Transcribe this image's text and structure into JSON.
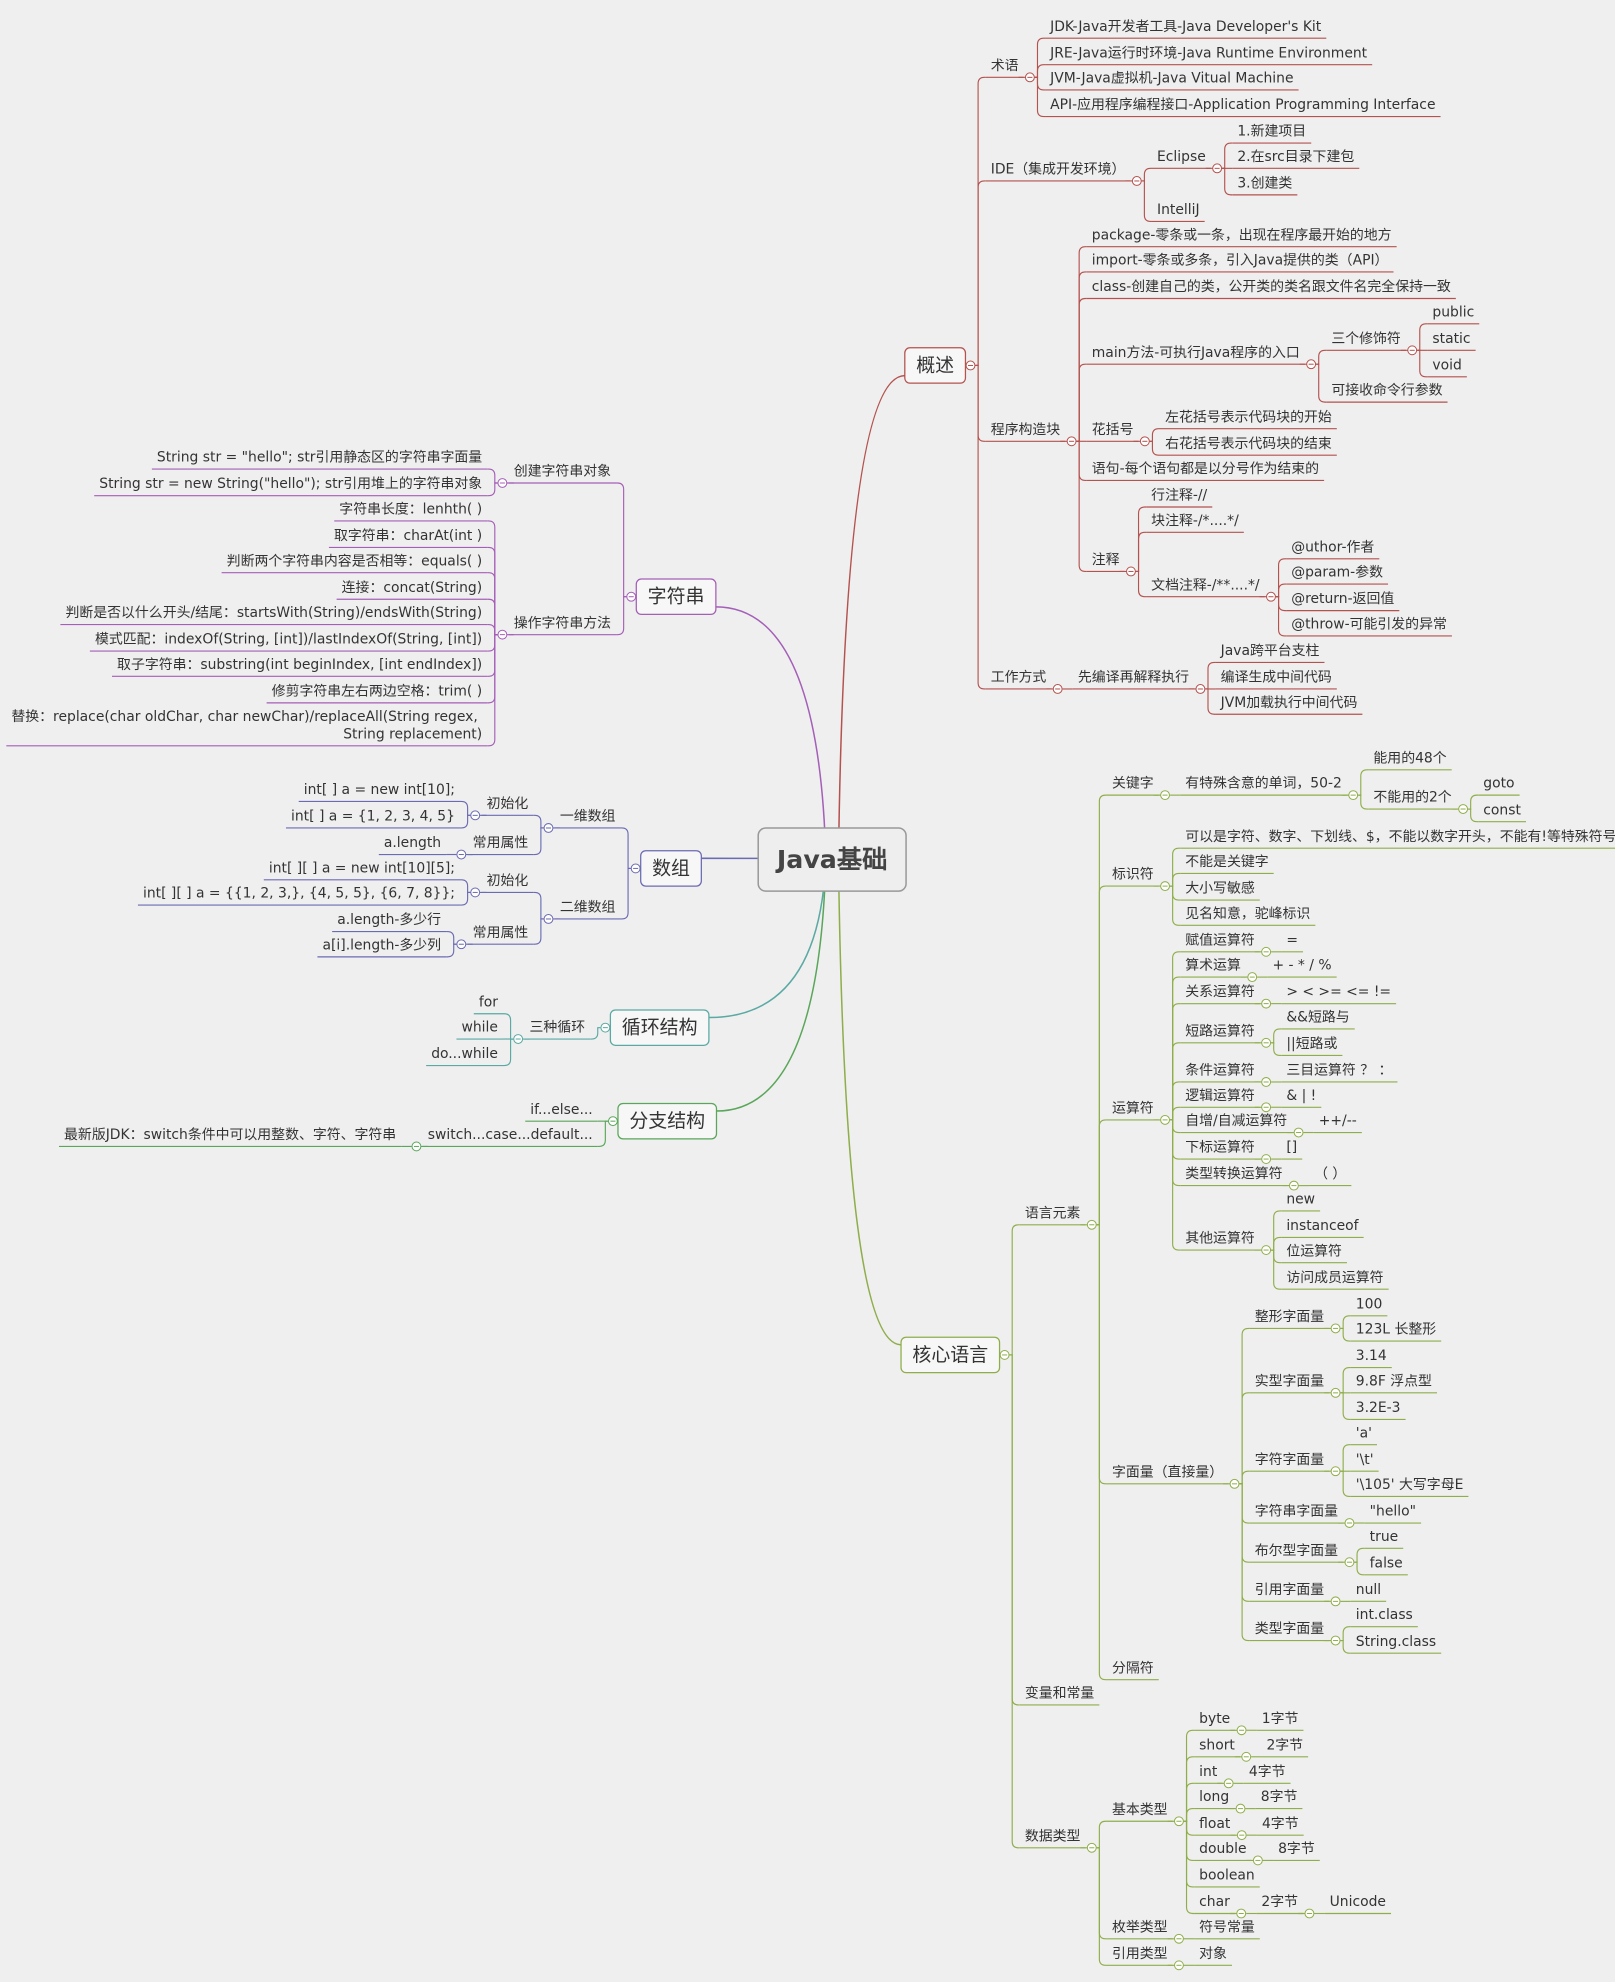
{
  "title": "Java基础",
  "branches": [
    {
      "label": "概述",
      "color": "#b4524e",
      "children": [
        {
          "label": "术语",
          "children": [
            {
              "label": "JDK-Java开发者工具-Java Developer's Kit"
            },
            {
              "label": "JRE-Java运行时环境-Java Runtime Environment"
            },
            {
              "label": "JVM-Java虚拟机-Java Vitual Machine"
            },
            {
              "label": "API-应用程序编程接口-Application Programming Interface"
            }
          ]
        },
        {
          "label": "IDE（集成开发环境）",
          "children": [
            {
              "label": "Eclipse",
              "children": [
                {
                  "label": "1.新建项目"
                },
                {
                  "label": "2.在src目录下建包"
                },
                {
                  "label": "3.创建类"
                }
              ]
            },
            {
              "label": "IntelliJ"
            }
          ]
        },
        {
          "label": "程序构造块",
          "children": [
            {
              "label": "package-零条或一条，出现在程序最开始的地方"
            },
            {
              "label": "import-零条或多条，引入Java提供的类（API）"
            },
            {
              "label": "class-创建自己的类，公开类的类名跟文件名完全保持一致"
            },
            {
              "label": "main方法-可执行Java程序的入口",
              "children": [
                {
                  "label": "三个修饰符",
                  "children": [
                    {
                      "label": "public"
                    },
                    {
                      "label": "static"
                    },
                    {
                      "label": "void"
                    }
                  ]
                },
                {
                  "label": "可接收命令行参数"
                }
              ]
            },
            {
              "label": "花括号",
              "children": [
                {
                  "label": "左花括号表示代码块的开始"
                },
                {
                  "label": "右花括号表示代码块的结束"
                }
              ]
            },
            {
              "label": "语句-每个语句都是以分号作为结束的"
            },
            {
              "label": "注释",
              "children": [
                {
                  "label": "行注释-//"
                },
                {
                  "label": "块注释-/*....*/"
                },
                {
                  "label": "文档注释-/**....*/",
                  "children": [
                    {
                      "label": "@uthor-作者"
                    },
                    {
                      "label": "@param-参数"
                    },
                    {
                      "label": "@return-返回值"
                    },
                    {
                      "label": "@throw-可能引发的异常"
                    }
                  ]
                }
              ]
            }
          ]
        },
        {
          "label": "工作方式",
          "children": [
            {
              "label": "先编译再解释执行",
              "children": [
                {
                  "label": "Java跨平台支柱"
                },
                {
                  "label": "编译生成中间代码"
                },
                {
                  "label": "JVM加载执行中间代码"
                }
              ]
            }
          ]
        }
      ]
    },
    {
      "label": "字符串",
      "color": "#a45fb7",
      "children": [
        {
          "label": "创建字符串对象",
          "children": [
            {
              "label": "String str = \"hello\"; str引用静态区的字符串字面量"
            },
            {
              "label": "String str = new String(\"hello\"); str引用堆上的字符串对象"
            }
          ]
        },
        {
          "label": "操作字符串方法",
          "children": [
            {
              "label": "字符串长度：lenhth( )"
            },
            {
              "label": "取字符串：charAt(int )"
            },
            {
              "label": "判断两个字符串内容是否相等：equals( )"
            },
            {
              "label": "连接：concat(String)"
            },
            {
              "label": "判断是否以什么开头/结尾：startsWith(String)/endsWith(String)"
            },
            {
              "label": "模式匹配：indexOf(String, [int])/lastIndexOf(String, [int])"
            },
            {
              "label": "取子字符串：substring(int beginIndex, [int endIndex])"
            },
            {
              "label": "修剪字符串左右两边空格：trim( )"
            },
            {
              "label": "替换：replace(char oldChar, char newChar)/replaceAll(String regex, String replacement)"
            }
          ]
        }
      ]
    },
    {
      "label": "数组",
      "color": "#6b6bb3",
      "children": [
        {
          "label": "一维数组",
          "children": [
            {
              "label": "初始化",
              "children": [
                {
                  "label": "int[ ] a = new int[10];"
                },
                {
                  "label": "int[ ]  a = {1, 2, 3, 4, 5}"
                }
              ]
            },
            {
              "label": "常用属性",
              "children": [
                {
                  "label": "a.length"
                }
              ]
            }
          ]
        },
        {
          "label": "二维数组",
          "children": [
            {
              "label": "初始化",
              "children": [
                {
                  "label": "int[ ][ ] a = new int[10][5];"
                },
                {
                  "label": "int[ ][ ] a = {{1, 2, 3,}, {4, 5, 5}, {6, 7, 8}};"
                }
              ]
            },
            {
              "label": "常用属性",
              "children": [
                {
                  "label": "a.length-多少行"
                },
                {
                  "label": "a[i].length-多少列"
                }
              ]
            }
          ]
        }
      ]
    },
    {
      "label": "循环结构",
      "color": "#5aa9a3",
      "children": [
        {
          "label": "三种循环",
          "children": [
            {
              "label": "for"
            },
            {
              "label": "while"
            },
            {
              "label": "do...while"
            }
          ]
        }
      ]
    },
    {
      "label": "分支结构",
      "color": "#5aa65a",
      "children": [
        {
          "label": "if...else..."
        },
        {
          "label": "switch...case...default...",
          "children": [
            {
              "label": "最新版JDK：switch条件中可以用整数、字符、字符串"
            }
          ]
        }
      ]
    },
    {
      "label": "核心语言",
      "color": "#8fae4b",
      "children": [
        {
          "label": "语言元素",
          "children": [
            {
              "label": "关键字",
              "children": [
                {
                  "label": "有特殊含意的单词，50-2",
                  "children": [
                    {
                      "label": "能用的48个"
                    },
                    {
                      "label": "不能用的2个",
                      "children": [
                        {
                          "label": "goto"
                        },
                        {
                          "label": "const"
                        }
                      ]
                    }
                  ]
                }
              ]
            },
            {
              "label": "标识符",
              "children": [
                {
                  "label": "可以是字符、数字、下划线、$，不能以数字开头，不能有!等特殊符号"
                },
                {
                  "label": "不能是关键字"
                },
                {
                  "label": "大小写敏感"
                },
                {
                  "label": "见名知意，驼峰标识"
                }
              ]
            },
            {
              "label": "运算符",
              "children": [
                {
                  "label": "赋值运算符",
                  "children": [
                    {
                      "label": "="
                    }
                  ]
                },
                {
                  "label": "算术运算",
                  "children": [
                    {
                      "label": "+ - * / %"
                    }
                  ]
                },
                {
                  "label": "关系运算符",
                  "children": [
                    {
                      "label": "> < >= <= !="
                    }
                  ]
                },
                {
                  "label": "短路运算符",
                  "children": [
                    {
                      "label": "&&短路与"
                    },
                    {
                      "label": "||短路或"
                    }
                  ]
                },
                {
                  "label": "条件运算符",
                  "children": [
                    {
                      "label": "三目运算符 ？ ："
                    }
                  ]
                },
                {
                  "label": "逻辑运算符",
                  "children": [
                    {
                      "label": "& | !"
                    }
                  ]
                },
                {
                  "label": "自增/自减运算符",
                  "children": [
                    {
                      "label": "++/--"
                    }
                  ]
                },
                {
                  "label": "下标运算符",
                  "children": [
                    {
                      "label": "[]"
                    }
                  ]
                },
                {
                  "label": "类型转换运算符",
                  "children": [
                    {
                      "label": "（ ）"
                    }
                  ]
                },
                {
                  "label": "其他运算符",
                  "children": [
                    {
                      "label": "new"
                    },
                    {
                      "label": "instanceof"
                    },
                    {
                      "label": "位运算符"
                    },
                    {
                      "label": "访问成员运算符"
                    }
                  ]
                }
              ]
            },
            {
              "label": "字面量（直接量）",
              "children": [
                {
                  "label": "整形字面量",
                  "children": [
                    {
                      "label": "100"
                    },
                    {
                      "label": "123L  长整形"
                    }
                  ]
                },
                {
                  "label": "实型字面量",
                  "children": [
                    {
                      "label": "3.14"
                    },
                    {
                      "label": "9.8F 浮点型"
                    },
                    {
                      "label": "3.2E-3"
                    }
                  ]
                },
                {
                  "label": "字符字面量",
                  "children": [
                    {
                      "label": "'a'"
                    },
                    {
                      "label": "'\\t'"
                    },
                    {
                      "label": "'\\105' 大写字母E"
                    }
                  ]
                },
                {
                  "label": "字符串字面量",
                  "children": [
                    {
                      "label": "\"hello\""
                    }
                  ]
                },
                {
                  "label": "布尔型字面量",
                  "children": [
                    {
                      "label": "true"
                    },
                    {
                      "label": "false"
                    }
                  ]
                },
                {
                  "label": "引用字面量",
                  "children": [
                    {
                      "label": "null"
                    }
                  ]
                },
                {
                  "label": "类型字面量",
                  "children": [
                    {
                      "label": "int.class"
                    },
                    {
                      "label": "String.class"
                    }
                  ]
                }
              ]
            },
            {
              "label": "分隔符"
            }
          ]
        },
        {
          "label": "变量和常量"
        },
        {
          "label": "数据类型",
          "children": [
            {
              "label": "基本类型",
              "children": [
                {
                  "label": "byte",
                  "children": [
                    {
                      "label": "1字节"
                    }
                  ]
                },
                {
                  "label": "short",
                  "children": [
                    {
                      "label": "2字节"
                    }
                  ]
                },
                {
                  "label": "int",
                  "children": [
                    {
                      "label": "4字节"
                    }
                  ]
                },
                {
                  "label": "long",
                  "children": [
                    {
                      "label": "8字节"
                    }
                  ]
                },
                {
                  "label": "float",
                  "children": [
                    {
                      "label": "4字节"
                    }
                  ]
                },
                {
                  "label": "double",
                  "children": [
                    {
                      "label": "8字节"
                    }
                  ]
                },
                {
                  "label": "boolean"
                },
                {
                  "label": "char",
                  "children": [
                    {
                      "label": "2字节",
                      "children": [
                        {
                          "label": "Unicode"
                        }
                      ]
                    }
                  ]
                }
              ]
            },
            {
              "label": "枚举类型",
              "children": [
                {
                  "label": "符号常量"
                }
              ]
            },
            {
              "label": "引用类型",
              "children": [
                {
                  "label": "对象"
                }
              ]
            }
          ]
        }
      ]
    }
  ]
}
